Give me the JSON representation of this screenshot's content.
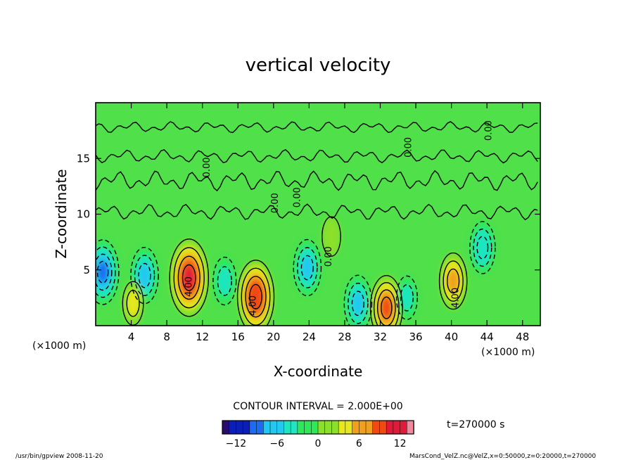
{
  "chart_data": {
    "type": "heatmap",
    "title": "vertical velocity",
    "xlabel": "X-coordinate",
    "ylabel": "Z-coordinate",
    "x_unit": "(×1000 m)",
    "y_unit": "(×1000 m)",
    "xlim": [
      0,
      50
    ],
    "ylim": [
      0,
      20
    ],
    "x_ticks": [
      4,
      8,
      12,
      16,
      20,
      24,
      28,
      32,
      36,
      40,
      44,
      48
    ],
    "y_ticks": [
      5,
      10,
      15
    ],
    "grid": false,
    "colormap": [
      "#2a0a6e",
      "#0a1fb8",
      "#1c6bf0",
      "#22c8f0",
      "#1fe6c0",
      "#2ee85a",
      "#8ae02a",
      "#e8e81e",
      "#f0a01e",
      "#f04a14",
      "#e01a3a",
      "#f08aa0"
    ],
    "color_range": [
      -14,
      14
    ],
    "colorbar_ticks": [
      -12,
      -6,
      0,
      6,
      12
    ],
    "contour_interval": "2.000E+00",
    "features": [
      {
        "x": 0.8,
        "y": 4.8,
        "w": -8
      },
      {
        "x": 5.5,
        "y": 4.5,
        "w": -6
      },
      {
        "x": 10.5,
        "y": 4.3,
        "w": 11
      },
      {
        "x": 14.5,
        "y": 4.0,
        "w": -4
      },
      {
        "x": 18.0,
        "y": 2.6,
        "w": 10
      },
      {
        "x": 23.8,
        "y": 5.2,
        "w": -6
      },
      {
        "x": 29.5,
        "y": 2.0,
        "w": -6
      },
      {
        "x": 32.7,
        "y": 1.6,
        "w": 8
      },
      {
        "x": 35.0,
        "y": 2.5,
        "w": -3
      },
      {
        "x": 40.2,
        "y": 4.0,
        "w": 6
      },
      {
        "x": 43.5,
        "y": 7.0,
        "w": -5
      },
      {
        "x": 4.2,
        "y": 2.0,
        "w": 3
      },
      {
        "x": 26.5,
        "y": 8.0,
        "w": 2
      }
    ],
    "contour_labels": [
      "4.00",
      "4.00",
      "4.00",
      "0.00",
      "0.00",
      "0.00",
      "0.00",
      "0.00",
      "0.00"
    ]
  },
  "footer": {
    "contour_text": "CONTOUR INTERVAL = 2.000E+00",
    "time_text": "t=270000 s",
    "left_note": "/usr/bin/gpview  2008-11-20",
    "right_note": "MarsCond_VelZ.nc@VelZ,x=0:50000,z=0:20000,t=270000"
  }
}
